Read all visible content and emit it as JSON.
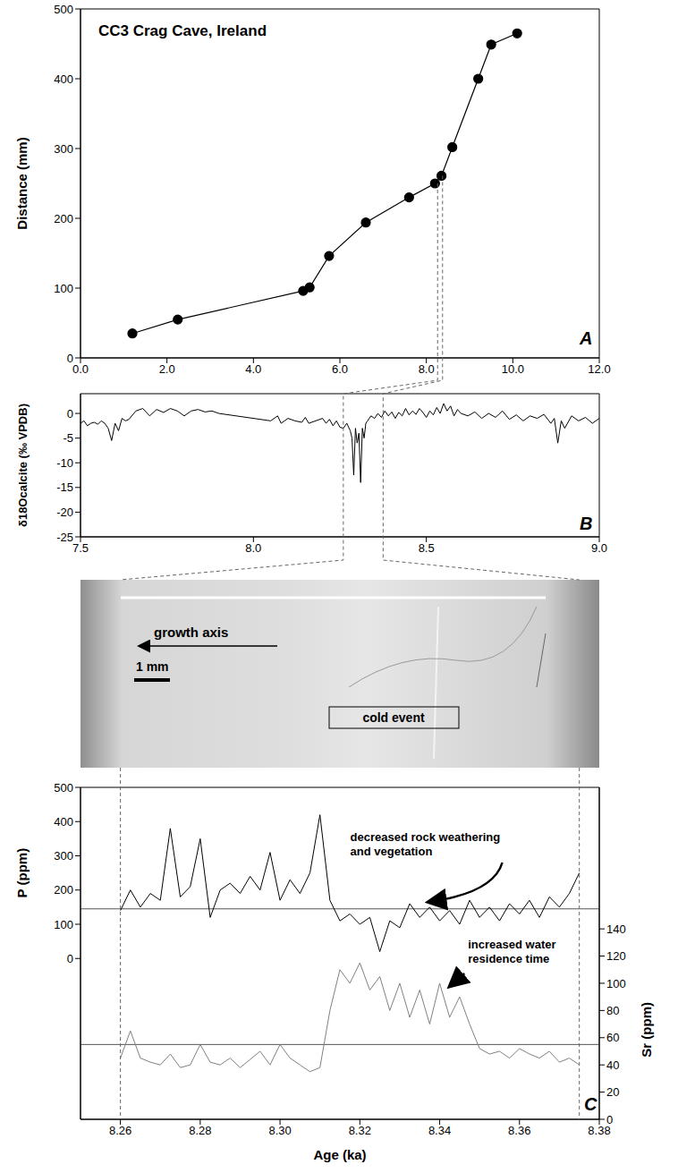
{
  "chart_data": [
    {
      "type": "line",
      "panel": "A",
      "title": "CC3 Crag Cave, Ireland",
      "y_label": "Distance (mm)",
      "x": [
        1.2,
        2.25,
        5.15,
        5.3,
        5.75,
        6.6,
        7.6,
        8.2,
        8.35,
        8.6,
        9.2,
        9.5,
        10.1
      ],
      "values": [
        35,
        55,
        96,
        101,
        146,
        194,
        230,
        250,
        261,
        302,
        400,
        449,
        465
      ],
      "color": "#000000",
      "marker": "circle",
      "line_style": "solid",
      "xlim": [
        0,
        12
      ],
      "xticks": [
        {
          "value": 0,
          "label": "0.0"
        },
        {
          "value": 2,
          "label": "2.0"
        },
        {
          "value": 4,
          "label": "4.0"
        },
        {
          "value": 6,
          "label": "6.0"
        },
        {
          "value": 8,
          "label": "8.0"
        },
        {
          "value": 10,
          "label": "10.0"
        },
        {
          "value": 12,
          "label": "12.0"
        }
      ],
      "ylim": [
        0,
        500
      ],
      "yticks": [
        0,
        100,
        200,
        300,
        400,
        500
      ]
    },
    {
      "type": "line",
      "panel": "B",
      "y_label": "δ18Ocalcite (‰ VPDB)",
      "x": [
        7.5,
        7.51,
        7.52,
        7.53,
        7.54,
        7.55,
        7.56,
        7.57,
        7.58,
        7.59,
        7.6,
        7.61,
        7.62,
        7.63,
        7.64,
        7.66,
        7.68,
        7.7,
        7.72,
        7.74,
        7.76,
        7.78,
        7.8,
        7.82,
        7.84,
        7.86,
        7.88,
        7.9,
        8.05,
        8.07,
        8.08,
        8.1,
        8.12,
        8.14,
        8.15,
        8.16,
        8.18,
        8.2,
        8.21,
        8.22,
        8.23,
        8.24,
        8.25,
        8.26,
        8.27,
        8.28,
        8.285,
        8.29,
        8.295,
        8.3,
        8.305,
        8.31,
        8.315,
        8.32,
        8.325,
        8.33,
        8.34,
        8.35,
        8.36,
        8.37,
        8.38,
        8.39,
        8.4,
        8.41,
        8.42,
        8.43,
        8.44,
        8.45,
        8.46,
        8.47,
        8.48,
        8.49,
        8.5,
        8.51,
        8.52,
        8.53,
        8.54,
        8.55,
        8.56,
        8.57,
        8.58,
        8.59,
        8.6,
        8.62,
        8.64,
        8.66,
        8.68,
        8.7,
        8.72,
        8.74,
        8.76,
        8.78,
        8.8,
        8.82,
        8.84,
        8.86,
        8.87,
        8.88,
        8.89,
        8.9,
        8.92,
        8.94,
        8.96,
        8.98,
        9.0
      ],
      "values": [
        -2,
        -1.5,
        -2.5,
        -2,
        -1.8,
        -2.2,
        -1.5,
        -2,
        -3,
        -5.5,
        -2,
        -3.5,
        -1,
        -1.5,
        -1.2,
        0.5,
        1,
        -0.5,
        0.8,
        0.2,
        1,
        0.5,
        -0.5,
        0.5,
        0.8,
        0.3,
        0.5,
        0,
        -1.5,
        -0.5,
        -2,
        -1,
        -1.5,
        -1.8,
        -0.8,
        -2,
        -1.5,
        -1,
        -2,
        -1.2,
        -2.5,
        -1.5,
        -2.8,
        -3,
        -2,
        -3.5,
        -5,
        -12.5,
        -3,
        -6,
        -4,
        -14,
        -3,
        -5,
        -2,
        -1.5,
        -0.5,
        -1,
        0,
        -0.8,
        0.5,
        -0.5,
        0.3,
        -1,
        0.2,
        -0.5,
        1,
        -0.3,
        0.5,
        -0.2,
        1,
        0.2,
        -0.8,
        0.5,
        -0.3,
        1.2,
        0,
        2,
        0.5,
        1.5,
        -0.5,
        0.8,
        0,
        -0.5,
        0.3,
        -1,
        0,
        -0.8,
        0.5,
        -1.2,
        -0.3,
        -1.5,
        -0.5,
        -1,
        -0.2,
        -2,
        -1,
        -6,
        -1.5,
        -3,
        -0.5,
        -1.5,
        -0.8,
        -2,
        -1
      ],
      "color": "#000000",
      "line_style": "solid",
      "xlim": [
        7.5,
        9
      ],
      "xticks": [
        7.5,
        {
          "value": 8,
          "label": "8.0"
        },
        8.5,
        {
          "value": 9,
          "label": "9.0"
        }
      ],
      "ylim": [
        -25,
        4
      ],
      "yticks": [
        0,
        -5,
        -10,
        -15,
        -20,
        -25
      ]
    },
    {
      "type": "image",
      "labels": {
        "growth_axis": "growth axis",
        "scale": "1 mm",
        "event": "cold event"
      }
    },
    {
      "type": "line",
      "panel": "C",
      "x_label": "Age (ka)",
      "y_label": "P (ppm)",
      "y2_label": "Sr (ppm)",
      "x": [
        8.26,
        8.2625,
        8.265,
        8.2675,
        8.27,
        8.2725,
        8.275,
        8.2775,
        8.28,
        8.2825,
        8.285,
        8.2875,
        8.29,
        8.2925,
        8.295,
        8.2975,
        8.3,
        8.3025,
        8.305,
        8.3075,
        8.31,
        8.3125,
        8.315,
        8.3175,
        8.32,
        8.3225,
        8.325,
        8.3275,
        8.33,
        8.3325,
        8.335,
        8.3375,
        8.34,
        8.3425,
        8.345,
        8.3475,
        8.35,
        8.3525,
        8.355,
        8.3575,
        8.36,
        8.3625,
        8.365,
        8.3675,
        8.37,
        8.3725,
        8.375
      ],
      "series": [
        {
          "name": "P",
          "color": "#000000",
          "values": [
            140,
            200,
            150,
            190,
            170,
            380,
            180,
            210,
            350,
            120,
            200,
            220,
            190,
            240,
            200,
            310,
            170,
            230,
            190,
            250,
            420,
            170,
            110,
            130,
            100,
            120,
            20,
            110,
            90,
            160,
            120,
            150,
            110,
            140,
            100,
            170,
            120,
            150,
            110,
            160,
            130,
            170,
            120,
            180,
            150,
            190,
            250
          ]
        },
        {
          "name": "Sr",
          "color": "#808080",
          "axis": "y2",
          "values": [
            45,
            65,
            45,
            42,
            40,
            48,
            38,
            40,
            55,
            42,
            40,
            45,
            38,
            44,
            50,
            40,
            55,
            45,
            40,
            35,
            38,
            80,
            110,
            100,
            115,
            95,
            105,
            80,
            100,
            75,
            95,
            70,
            100,
            75,
            90,
            70,
            52,
            48,
            50,
            45,
            52,
            48,
            45,
            50,
            42,
            45,
            40
          ]
        }
      ],
      "xlim": [
        8.25,
        8.38
      ],
      "xticks": [
        8.26,
        8.28,
        {
          "value": 8.3,
          "label": "8.30"
        },
        8.32,
        8.34,
        8.36,
        8.38
      ],
      "ylim": [
        -470,
        500
      ],
      "yticks": [
        0,
        100,
        200,
        300,
        400,
        500
      ],
      "y2lim": [
        0,
        244
      ],
      "y2ticks": [
        0,
        20,
        40,
        60,
        80,
        100,
        120,
        140
      ],
      "reference_lines": [
        {
          "axis": "y",
          "value": 145
        },
        {
          "axis": "y2",
          "value": 55
        }
      ],
      "annotations": [
        "decreased rock weathering and vegetation",
        "increased water residence time"
      ]
    }
  ]
}
